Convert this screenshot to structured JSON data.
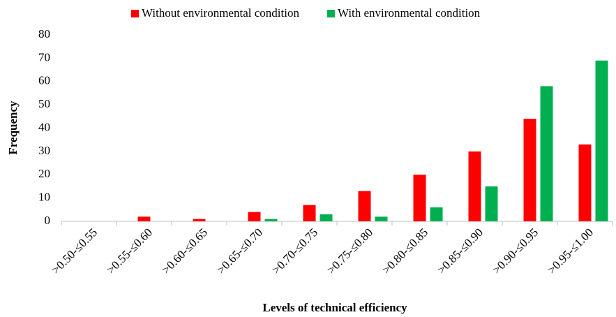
{
  "chart_data": {
    "type": "bar",
    "x_label": "Levels of technical efficiency",
    "y_label": "Frequency",
    "categories": [
      ">0.50-≤0.55",
      ">0.55-≤0.60",
      ">0.60-≤0.65",
      ">0.65-≤0.70",
      ">0.70-≤0.75",
      ">0.75-≤0.80",
      ">0.80-≤0.85",
      ">0.85-≤0.90",
      ">0.90-≤0.95",
      ">0.95-≤1.00"
    ],
    "series": [
      {
        "name": "Without environmental condition",
        "color": "#ff0000",
        "values": [
          0,
          2,
          1,
          4,
          7,
          13,
          20,
          30,
          44,
          33
        ]
      },
      {
        "name": "With environmental condition",
        "color": "#00b050",
        "values": [
          0,
          0,
          0,
          1,
          3,
          2,
          6,
          15,
          58,
          69
        ]
      }
    ],
    "ylim": [
      0,
      80
    ],
    "yticks": [
      0,
      10,
      20,
      30,
      40,
      50,
      60,
      70,
      80
    ],
    "grid": false,
    "legend": "top"
  }
}
